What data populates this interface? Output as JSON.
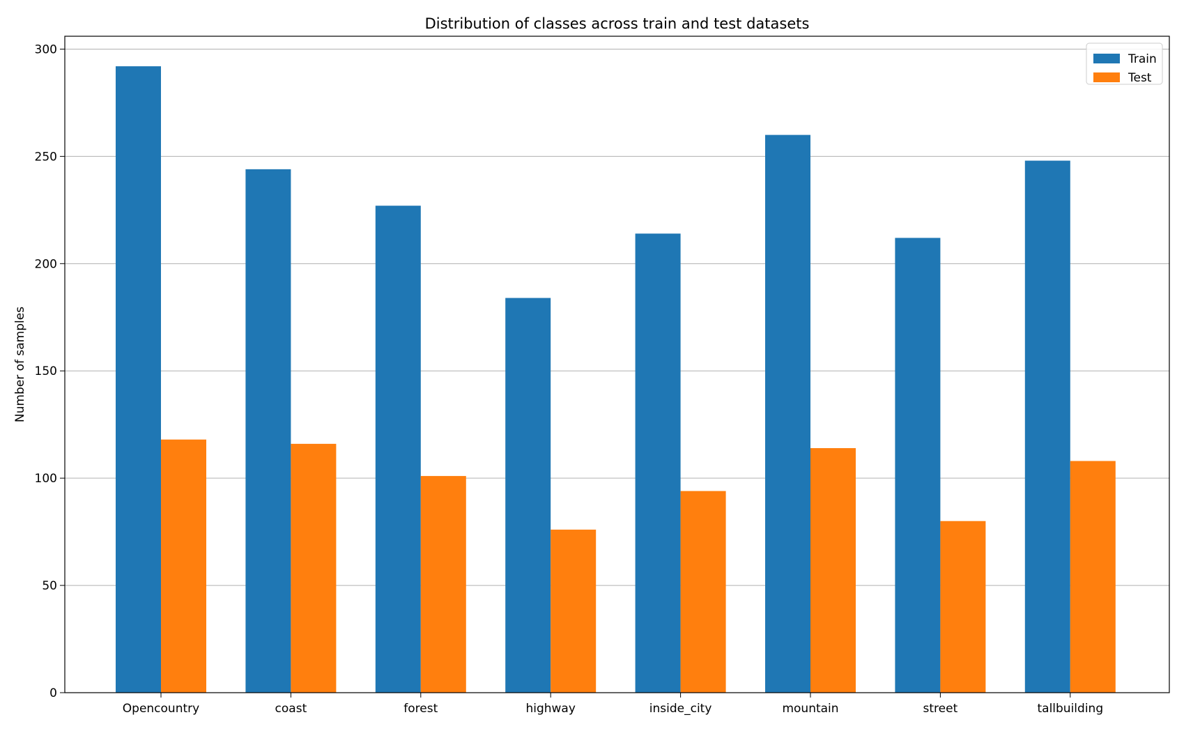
{
  "chart_data": {
    "type": "bar",
    "title": "Distribution of classes across train and test datasets",
    "xlabel": "",
    "ylabel": "Number of samples",
    "categories": [
      "Opencountry",
      "coast",
      "forest",
      "highway",
      "inside_city",
      "mountain",
      "street",
      "tallbuilding"
    ],
    "series": [
      {
        "name": "Train",
        "color": "#1f77b4",
        "values": [
          292,
          244,
          227,
          184,
          214,
          260,
          212,
          248
        ]
      },
      {
        "name": "Test",
        "color": "#ff7f0e",
        "values": [
          118,
          116,
          101,
          76,
          94,
          114,
          80,
          108
        ]
      }
    ],
    "ylim": [
      0,
      306
    ],
    "yticks": [
      0,
      50,
      100,
      150,
      200,
      250,
      300
    ],
    "grid": "horizontal",
    "legend_position": "top-right"
  }
}
